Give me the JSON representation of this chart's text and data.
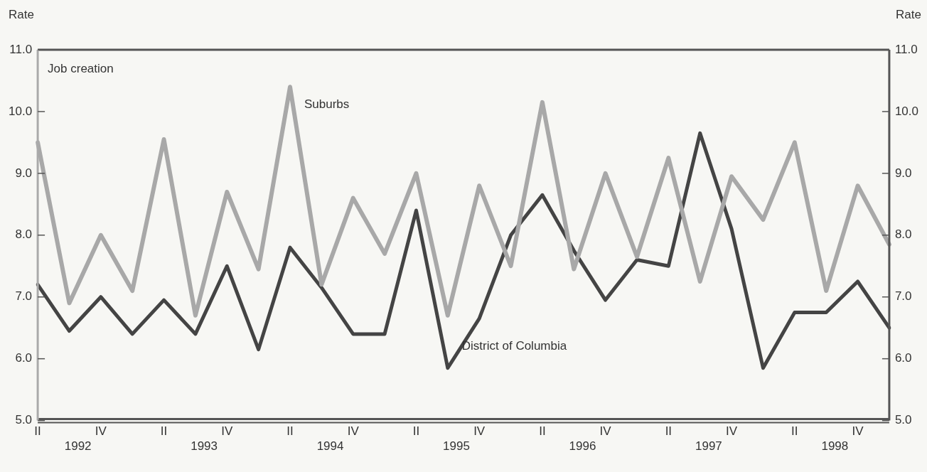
{
  "chart_data": {
    "type": "line",
    "title": "Job creation",
    "ylabel": "Rate",
    "y2label": "Rate",
    "categories": [
      "II",
      null,
      "IV",
      null,
      "II",
      null,
      "IV",
      null,
      "II",
      null,
      "IV",
      null,
      "II",
      null,
      "IV",
      null,
      "II",
      null,
      "IV",
      null,
      "II",
      null,
      "IV",
      null,
      "II",
      null,
      "IV",
      null
    ],
    "series": [
      {
        "name": "Suburbs",
        "color": "#a8a8a8",
        "values": [
          9.5,
          6.9,
          8.0,
          7.1,
          9.55,
          6.7,
          8.7,
          7.45,
          10.4,
          7.2,
          8.6,
          7.7,
          9.0,
          6.7,
          8.8,
          7.5,
          10.15,
          7.45,
          9.0,
          7.65,
          9.25,
          7.25,
          8.95,
          8.25,
          9.5,
          7.1,
          8.8,
          7.85
        ]
      },
      {
        "name": "District of Columbia",
        "color": "#444444",
        "values": [
          7.2,
          6.45,
          7.0,
          6.4,
          6.95,
          6.4,
          7.5,
          6.15,
          7.8,
          7.15,
          6.4,
          6.4,
          8.4,
          5.85,
          6.65,
          8.0,
          8.65,
          7.75,
          6.95,
          7.6,
          7.5,
          9.65,
          8.1,
          5.85,
          6.75,
          6.75,
          7.25,
          6.5
        ]
      }
    ],
    "ylim": [
      5,
      11
    ],
    "yticks": [
      {
        "value": 5,
        "label": "5.0"
      },
      {
        "value": 6,
        "label": "6.0"
      },
      {
        "value": 7,
        "label": "7.0"
      },
      {
        "value": 8,
        "label": "8.0"
      },
      {
        "value": 9,
        "label": "9.0"
      },
      {
        "value": 10,
        "label": "10.0"
      },
      {
        "value": 11,
        "label": "11.0"
      }
    ],
    "y2lim": [
      5,
      11
    ],
    "y2ticks": [
      {
        "value": 5,
        "label": "5.0"
      },
      {
        "value": 6,
        "label": "6.0"
      },
      {
        "value": 7,
        "label": "7.0"
      },
      {
        "value": 8,
        "label": "8.0"
      },
      {
        "value": 9,
        "label": "9.0"
      },
      {
        "value": 10,
        "label": "10.0"
      },
      {
        "value": 11,
        "label": "11.0"
      }
    ],
    "annotations": [
      "1992",
      "1993",
      "1994",
      "1995",
      "1996",
      "1997",
      "1998"
    ],
    "grid": false,
    "legend": false,
    "marker": "none",
    "line_style": "solid"
  }
}
